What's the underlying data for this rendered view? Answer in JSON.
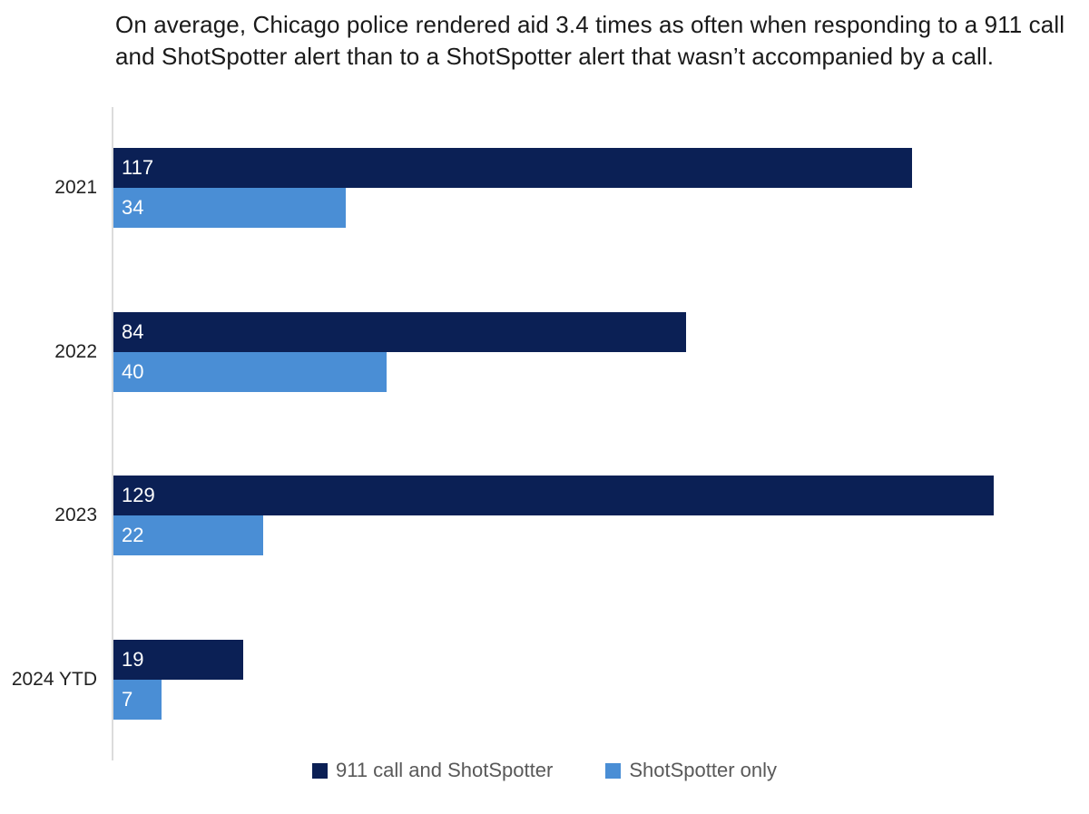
{
  "title": "On average, Chicago police rendered aid 3.4 times as often when responding to a 911 call and ShotSpotter alert than to a ShotSpotter alert that wasn’t accompanied by a call.",
  "chart_data": {
    "type": "bar",
    "orientation": "horizontal",
    "title": "On average, Chicago police rendered aid 3.4 times as often when responding to a 911 call and ShotSpotter alert than to a ShotSpotter alert that wasn’t accompanied by a call.",
    "categories": [
      "2021",
      "2022",
      "2023",
      "2024 YTD"
    ],
    "series": [
      {
        "name": "911 call and ShotSpotter",
        "color": "#0b2055",
        "values": [
          117,
          84,
          129,
          19
        ]
      },
      {
        "name": "ShotSpotter only",
        "color": "#4a8ed5",
        "values": [
          34,
          40,
          22,
          7
        ]
      }
    ],
    "value_labels": "inside-start, white",
    "xlim": [
      0,
      143
    ],
    "xmax": 143,
    "grid": false,
    "axis_line_color": "#dcdcdc",
    "legend_position": "bottom-center"
  },
  "colors": {
    "background": "#ffffff",
    "title_text": "#1a1a1a",
    "category_text": "#222222",
    "legend_text": "#595959",
    "value_text": "#ffffff"
  }
}
